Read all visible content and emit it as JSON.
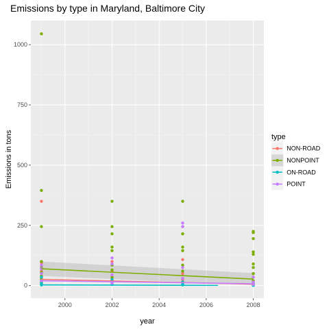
{
  "chart_data": {
    "type": "scatter",
    "title": "Emissions by type in Maryland, Baltimore City",
    "xlabel": "year",
    "ylabel": "Emissions in tons",
    "xlim": [
      1998.55,
      2008.45
    ],
    "ylim": [
      -52,
      1100
    ],
    "x_ticks": [
      2000,
      2002,
      2004,
      2006,
      2008
    ],
    "y_ticks": [
      0,
      250,
      500,
      750,
      1000
    ],
    "x_tick_labels": [
      "2000",
      "2002",
      "2004",
      "2006",
      "2008"
    ],
    "y_tick_labels": [
      "0",
      "250",
      "500",
      "750",
      "1000"
    ],
    "grid": true,
    "legend": {
      "title": "type",
      "position": "right"
    },
    "series": [
      {
        "name": "NON-ROAD",
        "color": "#F8766D",
        "points": [
          {
            "x": 1999,
            "y": 350
          },
          {
            "x": 1999,
            "y": 95
          },
          {
            "x": 1999,
            "y": 60
          },
          {
            "x": 1999,
            "y": 30
          },
          {
            "x": 1999,
            "y": 10
          },
          {
            "x": 2002,
            "y": 100
          },
          {
            "x": 2002,
            "y": 60
          },
          {
            "x": 2002,
            "y": 30
          },
          {
            "x": 2002,
            "y": 15
          },
          {
            "x": 2002,
            "y": 5
          },
          {
            "x": 2005,
            "y": 108
          },
          {
            "x": 2005,
            "y": 50
          },
          {
            "x": 2005,
            "y": 25
          },
          {
            "x": 2005,
            "y": 10
          },
          {
            "x": 2008,
            "y": 50
          },
          {
            "x": 2008,
            "y": 20
          },
          {
            "x": 2008,
            "y": 8
          },
          {
            "x": 2008,
            "y": 2
          }
        ],
        "trend": {
          "x": [
            1999,
            2008
          ],
          "y": [
            26,
            6
          ]
        }
      },
      {
        "name": "NONPOINT",
        "color": "#7CAE00",
        "points": [
          {
            "x": 1999,
            "y": 1045
          },
          {
            "x": 1999,
            "y": 395
          },
          {
            "x": 1999,
            "y": 245
          },
          {
            "x": 1999,
            "y": 100
          },
          {
            "x": 1999,
            "y": 75
          },
          {
            "x": 1999,
            "y": 55
          },
          {
            "x": 1999,
            "y": 40
          },
          {
            "x": 1999,
            "y": 25
          },
          {
            "x": 1999,
            "y": 15
          },
          {
            "x": 1999,
            "y": 5
          },
          {
            "x": 2002,
            "y": 350
          },
          {
            "x": 2002,
            "y": 245
          },
          {
            "x": 2002,
            "y": 215
          },
          {
            "x": 2002,
            "y": 160
          },
          {
            "x": 2002,
            "y": 145
          },
          {
            "x": 2002,
            "y": 85
          },
          {
            "x": 2002,
            "y": 65
          },
          {
            "x": 2002,
            "y": 35
          },
          {
            "x": 2002,
            "y": 20
          },
          {
            "x": 2005,
            "y": 350
          },
          {
            "x": 2005,
            "y": 245
          },
          {
            "x": 2005,
            "y": 215
          },
          {
            "x": 2005,
            "y": 160
          },
          {
            "x": 2005,
            "y": 145
          },
          {
            "x": 2005,
            "y": 85
          },
          {
            "x": 2005,
            "y": 60
          },
          {
            "x": 2005,
            "y": 30
          },
          {
            "x": 2005,
            "y": 15
          },
          {
            "x": 2008,
            "y": 225
          },
          {
            "x": 2008,
            "y": 220
          },
          {
            "x": 2008,
            "y": 195
          },
          {
            "x": 2008,
            "y": 140
          },
          {
            "x": 2008,
            "y": 130
          },
          {
            "x": 2008,
            "y": 90
          },
          {
            "x": 2008,
            "y": 75
          },
          {
            "x": 2008,
            "y": 50
          },
          {
            "x": 2008,
            "y": 35
          },
          {
            "x": 2008,
            "y": 20
          },
          {
            "x": 2008,
            "y": 8
          }
        ],
        "trend": {
          "x": [
            1999,
            2008
          ],
          "y": [
            70,
            27
          ]
        },
        "band": {
          "upper": [
            100,
            52
          ],
          "lower": [
            40,
            2
          ]
        }
      },
      {
        "name": "ON-ROAD",
        "color": "#00BFC4",
        "points": [
          {
            "x": 1999,
            "y": 35
          },
          {
            "x": 1999,
            "y": 20
          },
          {
            "x": 1999,
            "y": 10
          },
          {
            "x": 1999,
            "y": 3
          },
          {
            "x": 2002,
            "y": 25
          },
          {
            "x": 2002,
            "y": 12
          },
          {
            "x": 2002,
            "y": 5
          },
          {
            "x": 2005,
            "y": 15
          },
          {
            "x": 2005,
            "y": 8
          },
          {
            "x": 2005,
            "y": 3
          },
          {
            "x": 2008,
            "y": 10
          },
          {
            "x": 2008,
            "y": 4
          },
          {
            "x": 2008,
            "y": 1
          }
        ],
        "trend": {
          "x": [
            1999,
            2006.5
          ],
          "y": [
            3,
            1
          ]
        }
      },
      {
        "name": "POINT",
        "color": "#C77CFF",
        "points": [
          {
            "x": 1999,
            "y": 85
          },
          {
            "x": 1999,
            "y": 70
          },
          {
            "x": 1999,
            "y": 50
          },
          {
            "x": 1999,
            "y": 20
          },
          {
            "x": 2002,
            "y": 115
          },
          {
            "x": 2002,
            "y": 90
          },
          {
            "x": 2002,
            "y": 45
          },
          {
            "x": 2002,
            "y": 10
          },
          {
            "x": 2005,
            "y": 260
          },
          {
            "x": 2005,
            "y": 245
          },
          {
            "x": 2005,
            "y": 75
          },
          {
            "x": 2005,
            "y": 30
          },
          {
            "x": 2008,
            "y": 35
          },
          {
            "x": 2008,
            "y": 15
          },
          {
            "x": 2008,
            "y": 5
          }
        ],
        "trend": {
          "x": [
            1999,
            2008
          ],
          "y": [
            20,
            8
          ]
        }
      }
    ]
  }
}
